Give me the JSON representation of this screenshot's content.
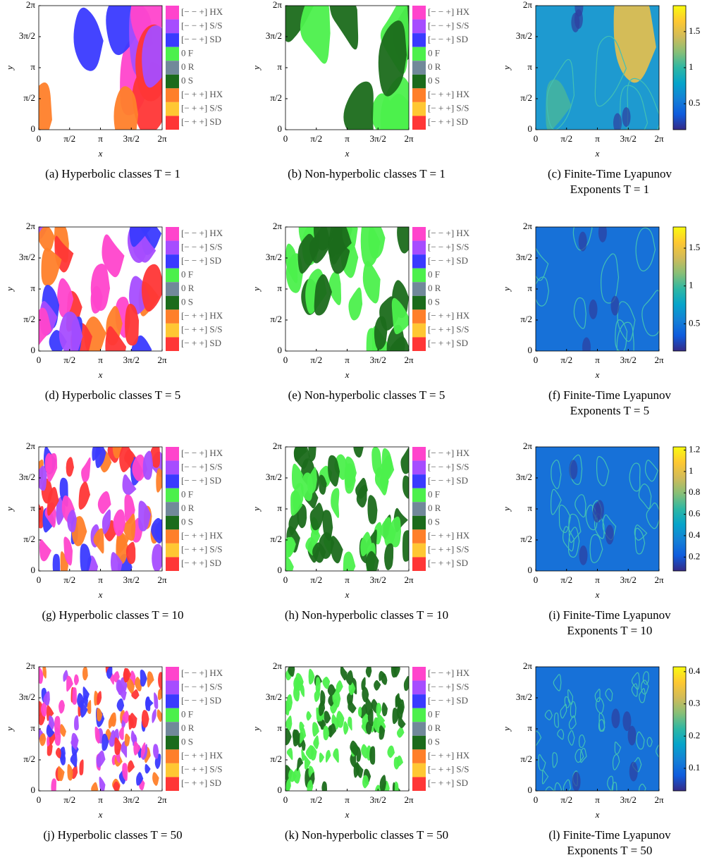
{
  "axes": {
    "x_label": "x",
    "y_label": "y",
    "ticks": [
      "0",
      "π/2",
      "π",
      "3π/2",
      "2π"
    ]
  },
  "class_legend": [
    {
      "label": "[− − +] HX",
      "color": "#ff44cc"
    },
    {
      "label": "[− − +] S/S",
      "color": "#a64dff"
    },
    {
      "label": "[− − +] SD",
      "color": "#3a3aff"
    },
    {
      "label": "0 F",
      "color": "#4cf04c"
    },
    {
      "label": "0 R",
      "color": "#71899a"
    },
    {
      "label": "0 S",
      "color": "#1b6b1b"
    },
    {
      "label": "[− + +] HX",
      "color": "#ff7f2a"
    },
    {
      "label": "[− + +] S/S",
      "color": "#ffc733"
    },
    {
      "label": "[− + +] SD",
      "color": "#ff3636"
    }
  ],
  "panels": [
    {
      "caption": "(a) Hyperbolic classes T = 1",
      "kind": "hyperbolic"
    },
    {
      "caption": "(b) Non-hyperbolic classes T = 1",
      "kind": "non-hyperbolic"
    },
    {
      "caption": "(c) Finite-Time Lyapunov Exponents T = 1",
      "kind": "ftle",
      "clim": [
        0.14,
        1.86
      ],
      "cticks": [
        0.5,
        1,
        1.5
      ]
    },
    {
      "caption": "(d) Hyperbolic classes T = 5",
      "kind": "hyperbolic"
    },
    {
      "caption": "(e) Non-hyperbolic classes T = 5",
      "kind": "non-hyperbolic"
    },
    {
      "caption": "(f) Finite-Time Lyapunov Exponents T = 5",
      "kind": "ftle",
      "clim": [
        0.14,
        1.78
      ],
      "cticks": [
        0.5,
        1,
        1.5
      ]
    },
    {
      "caption": "(g) Hyperbolic classes T = 10",
      "kind": "hyperbolic"
    },
    {
      "caption": "(h) Non-hyperbolic classes T = 10",
      "kind": "non-hyperbolic"
    },
    {
      "caption": "(i) Finite-Time Lyapunov Exponents T = 10",
      "kind": "ftle",
      "clim": [
        0.07,
        1.23
      ],
      "cticks": [
        0.2,
        0.4,
        0.6,
        0.8,
        1,
        1.2
      ]
    },
    {
      "caption": "(j) Hyperbolic classes T = 50",
      "kind": "hyperbolic"
    },
    {
      "caption": "(k) Non-hyperbolic classes T = 50",
      "kind": "non-hyperbolic"
    },
    {
      "caption": "(l) Finite-Time Lyapunov Exponents T = 50",
      "kind": "ftle",
      "clim": [
        0.03,
        0.415
      ],
      "cticks": [
        0.1,
        0.2,
        0.3,
        0.4
      ]
    }
  ]
}
